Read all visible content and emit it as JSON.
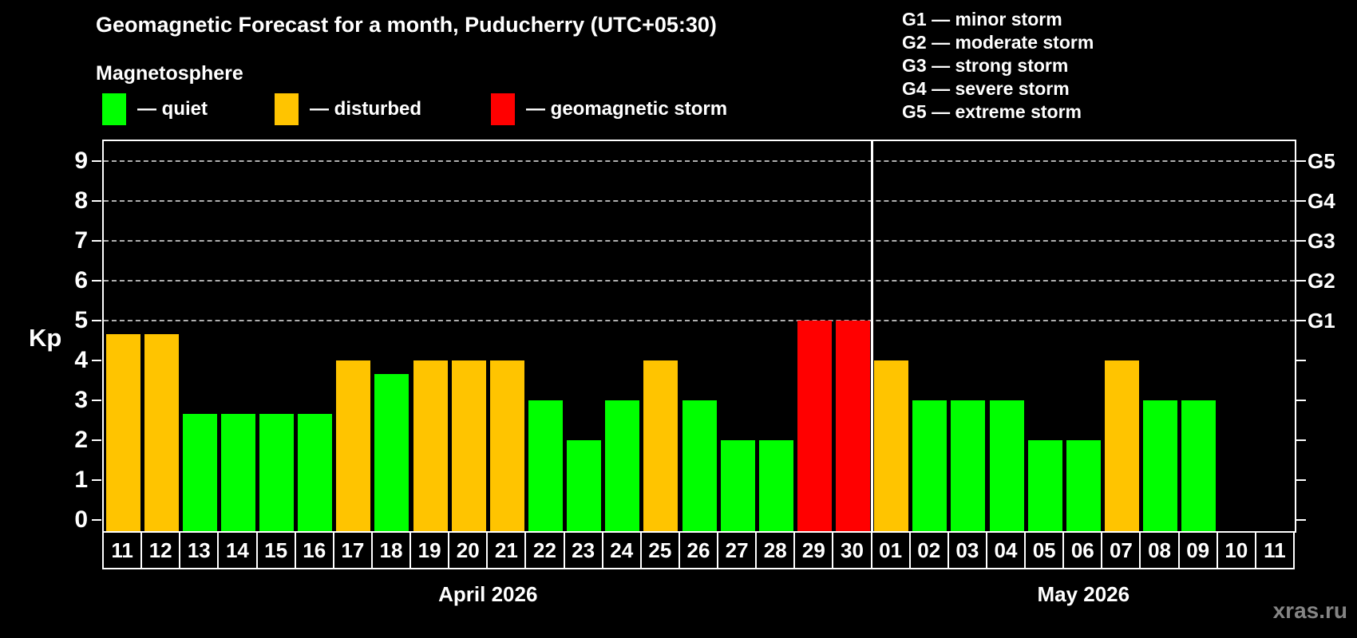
{
  "header": {
    "title": "Geomagnetic Forecast for a month, Puducherry (UTC+05:30)",
    "subtitle": "Magnetosphere"
  },
  "legend": {
    "items": [
      {
        "status": "quiet",
        "label": "— quiet",
        "color": "#00ff00",
        "offset_x": 8
      },
      {
        "status": "disturbed",
        "label": "— disturbed",
        "color": "#ffc400",
        "offset_x": 224
      },
      {
        "status": "storm",
        "label": "— geomagnetic storm",
        "color": "#ff0000",
        "offset_x": 495
      }
    ]
  },
  "g_scale_legend": {
    "items": [
      "G1 — minor storm",
      "G2 — moderate storm",
      "G3 — strong storm",
      "G4 — severe storm",
      "G5 — extreme storm"
    ]
  },
  "watermark": "xras.ru",
  "chart_data": {
    "type": "bar",
    "title": "Geomagnetic Forecast for a month, Puducherry (UTC+05:30)",
    "ylabel": "Kp",
    "ylim": [
      0,
      9.6
    ],
    "yticks": [
      0,
      1,
      2,
      3,
      4,
      5,
      6,
      7,
      8,
      9
    ],
    "gridline_values": [
      5,
      6,
      7,
      8,
      9
    ],
    "grid": "dashed",
    "right_axis": [
      {
        "kp": 5,
        "label": "G1"
      },
      {
        "kp": 6,
        "label": "G2"
      },
      {
        "kp": 7,
        "label": "G3"
      },
      {
        "kp": 8,
        "label": "G4"
      },
      {
        "kp": 9,
        "label": "G5"
      }
    ],
    "status_colors": {
      "quiet": "#00ff00",
      "disturbed": "#ffc400",
      "storm": "#ff0000"
    },
    "months": [
      {
        "label": "April 2026",
        "bars": [
          {
            "day": "11",
            "kp": 4.67,
            "status": "disturbed"
          },
          {
            "day": "12",
            "kp": 4.67,
            "status": "disturbed"
          },
          {
            "day": "13",
            "kp": 2.67,
            "status": "quiet"
          },
          {
            "day": "14",
            "kp": 2.67,
            "status": "quiet"
          },
          {
            "day": "15",
            "kp": 2.67,
            "status": "quiet"
          },
          {
            "day": "16",
            "kp": 2.67,
            "status": "quiet"
          },
          {
            "day": "17",
            "kp": 4,
            "status": "disturbed"
          },
          {
            "day": "18",
            "kp": 3.67,
            "status": "quiet"
          },
          {
            "day": "19",
            "kp": 4,
            "status": "disturbed"
          },
          {
            "day": "20",
            "kp": 4,
            "status": "disturbed"
          },
          {
            "day": "21",
            "kp": 4,
            "status": "disturbed"
          },
          {
            "day": "22",
            "kp": 3,
            "status": "quiet"
          },
          {
            "day": "23",
            "kp": 2,
            "status": "quiet"
          },
          {
            "day": "24",
            "kp": 3,
            "status": "quiet"
          },
          {
            "day": "25",
            "kp": 4,
            "status": "disturbed"
          },
          {
            "day": "26",
            "kp": 3,
            "status": "quiet"
          },
          {
            "day": "27",
            "kp": 2,
            "status": "quiet"
          },
          {
            "day": "28",
            "kp": 2,
            "status": "quiet"
          },
          {
            "day": "29",
            "kp": 5,
            "status": "storm"
          },
          {
            "day": "30",
            "kp": 5,
            "status": "storm"
          }
        ]
      },
      {
        "label": "May 2026",
        "bars": [
          {
            "day": "01",
            "kp": 4,
            "status": "disturbed"
          },
          {
            "day": "02",
            "kp": 3,
            "status": "quiet"
          },
          {
            "day": "03",
            "kp": 3,
            "status": "quiet"
          },
          {
            "day": "04",
            "kp": 3,
            "status": "quiet"
          },
          {
            "day": "05",
            "kp": 2,
            "status": "quiet"
          },
          {
            "day": "06",
            "kp": 2,
            "status": "quiet"
          },
          {
            "day": "07",
            "kp": 4,
            "status": "disturbed"
          },
          {
            "day": "08",
            "kp": 3,
            "status": "quiet"
          },
          {
            "day": "09",
            "kp": 3,
            "status": "quiet"
          },
          {
            "day": "10",
            "kp": null,
            "status": null
          },
          {
            "day": "11",
            "kp": null,
            "status": null
          }
        ]
      }
    ]
  }
}
